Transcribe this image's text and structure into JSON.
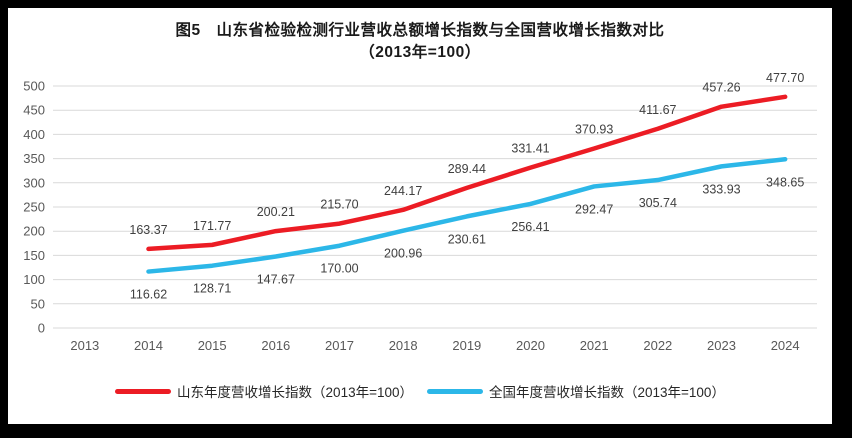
{
  "figure": {
    "title_line1": "图5　山东省检验检测行业营收总额增长指数与全国营收增长指数对比",
    "title_line2": "（2013年=100）"
  },
  "chart_data": {
    "type": "line",
    "title": "图5 山东省检验检测行业营收总额增长指数与全国营收增长指数对比（2013年=100）",
    "categories": [
      "2013",
      "2014",
      "2015",
      "2016",
      "2017",
      "2018",
      "2019",
      "2020",
      "2021",
      "2022",
      "2023",
      "2024"
    ],
    "series": [
      {
        "name": "山东年度营收增长指数（2013年=100）",
        "color": "#ec1c24",
        "label_position": "above",
        "values": [
          null,
          163.37,
          171.77,
          200.21,
          215.7,
          244.17,
          289.44,
          331.41,
          370.93,
          411.67,
          457.26,
          477.7
        ]
      },
      {
        "name": "全国年度营收增长指数（2013年=100）",
        "color": "#2cb7e8",
        "label_position": "below",
        "values": [
          null,
          116.62,
          128.71,
          147.67,
          170.0,
          200.96,
          230.61,
          256.41,
          292.47,
          305.74,
          333.93,
          348.65
        ]
      }
    ],
    "ylim": [
      0,
      500
    ],
    "ytick_step": 50,
    "grid": "horizontal",
    "legend_position": "bottom",
    "colors": {
      "gridline": "#d9d9d9",
      "axis_text": "#595959",
      "data_label": "#404040"
    }
  }
}
